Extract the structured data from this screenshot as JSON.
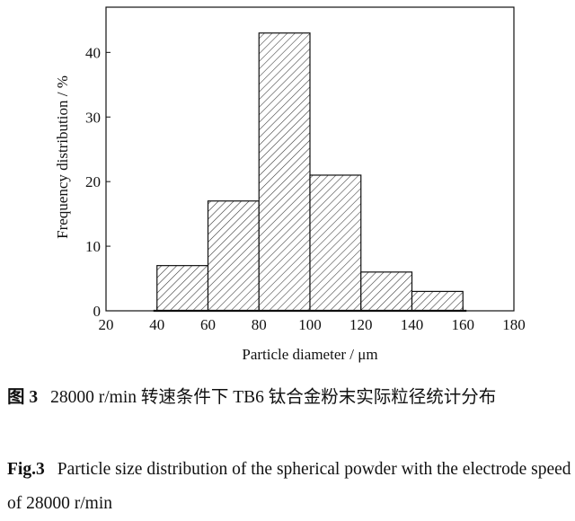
{
  "chart_data": {
    "type": "bar",
    "bins": [
      {
        "from": 40,
        "to": 60,
        "value": 7
      },
      {
        "from": 60,
        "to": 80,
        "value": 17
      },
      {
        "from": 80,
        "to": 100,
        "value": 43
      },
      {
        "from": 100,
        "to": 120,
        "value": 21
      },
      {
        "from": 120,
        "to": 140,
        "value": 6
      },
      {
        "from": 140,
        "to": 160,
        "value": 3
      }
    ],
    "xlabel": "Particle diameter / μm",
    "ylabel": "Frequency distribution / %",
    "xlim": [
      20,
      180
    ],
    "ylim": [
      0,
      47
    ],
    "xticks": [
      20,
      40,
      60,
      80,
      100,
      120,
      140,
      160,
      180
    ],
    "yticks": [
      0,
      10,
      20,
      30,
      40
    ],
    "grid": false,
    "bar_fill": "diagonal-hatch"
  },
  "caption_zh": {
    "label": "图 3",
    "text": "28000 r/min 转速条件下 TB6 钛合金粉末实际粒径统计分布"
  },
  "caption_en": {
    "label": "Fig.3",
    "text": "Particle size distribution of the spherical powder with the electrode speed of 28000 r/min"
  }
}
